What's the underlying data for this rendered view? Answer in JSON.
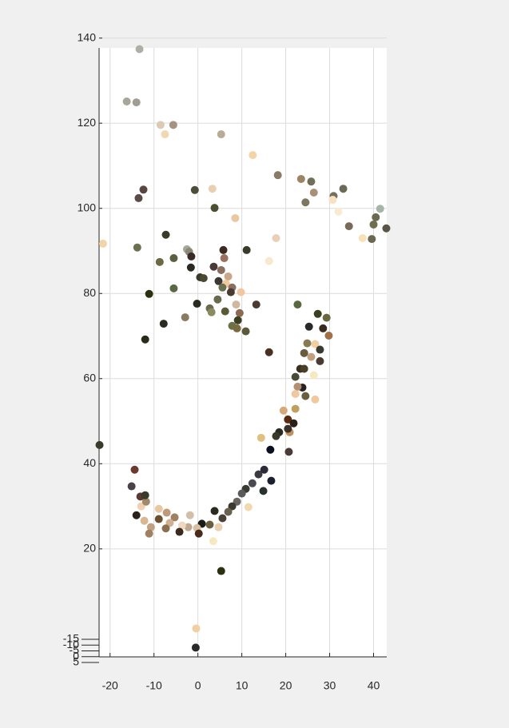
{
  "chart_data": {
    "type": "scatter",
    "x": [
      -13.3,
      -16.2,
      -14,
      -8.5,
      -5.6,
      -7.5,
      5.3,
      12.5,
      18.2,
      23.5,
      25.8,
      -12.4,
      -0.7,
      3.3,
      -13.5,
      33.1,
      26.4,
      30.9,
      24.5,
      3.8,
      41.5,
      30.7,
      32,
      8.5,
      40.5,
      40,
      34.4,
      42.9,
      39.6,
      37.5,
      17.8,
      -21.6,
      -7.3,
      -13.8,
      -2.5,
      -2,
      5.8,
      11.1,
      -5.5,
      -8.7,
      -1.5,
      6,
      16.2,
      -1.6,
      3.6,
      5.3,
      6.9,
      0.5,
      1.3,
      4.7,
      6.4,
      -5.5,
      5.6,
      7.8,
      9.8,
      -11.1,
      4.5,
      7.5,
      -0.2,
      8.7,
      13.3,
      22.7,
      9.5,
      2.7,
      3.1,
      6.2,
      -2.9,
      9.1,
      -7.8,
      27.3,
      29.3,
      7.8,
      8.9,
      10.9,
      25.3,
      28.5,
      -12,
      24.9,
      26.7,
      29.8,
      27.8,
      16.2,
      25.8,
      24.2,
      27.8,
      23.3,
      24.2,
      26.4,
      22.2,
      23.8,
      22.7,
      26.7,
      24.5,
      22.2,
      22.2,
      20.5,
      19.5,
      21.8,
      18.5,
      20.9,
      20.5,
      14.4,
      17.8,
      16.5,
      20.7,
      15.1,
      16.7,
      13.8,
      12.4,
      10.9,
      10,
      14.9,
      11.5,
      8.9,
      7.8,
      6.9,
      5.6,
      3.8,
      4.7,
      2.7,
      0.9,
      -0.2,
      -2.2,
      0.2,
      -3.6,
      -5.3,
      -6.4,
      -7.3,
      -8.9,
      -10.7,
      -11.1,
      -12.2,
      -12.9,
      -14,
      -11.8,
      -13.1,
      -12,
      -15.1,
      -14.4,
      -8.9,
      -7.1,
      -4.2,
      -1.8,
      3.5,
      5.3,
      -0.4,
      -0.5,
      -22.4
    ],
    "values": [
      137.4,
      125.1,
      124.9,
      119.6,
      119.6,
      117.4,
      117.4,
      112.5,
      107.8,
      106.9,
      106.3,
      104.4,
      104.3,
      104.6,
      102.4,
      104.6,
      103.7,
      102.9,
      101.4,
      100.1,
      99.9,
      102,
      99.2,
      97.7,
      97.9,
      96.2,
      95.8,
      95.3,
      92.8,
      93,
      93,
      91.7,
      93.8,
      90.8,
      90.4,
      89.8,
      90.2,
      90.2,
      88.3,
      87.4,
      88.7,
      88.3,
      87.6,
      86.1,
      86.3,
      85.5,
      84,
      83.8,
      83.6,
      82.9,
      82.3,
      81.2,
      81.4,
      81.4,
      80.3,
      79.9,
      78.6,
      80.3,
      77.6,
      77.4,
      77.4,
      77.4,
      75.4,
      76.5,
      75.6,
      75.8,
      74.4,
      73.7,
      72.9,
      75.2,
      74.3,
      72.4,
      71.8,
      71.1,
      72.2,
      71.8,
      69.2,
      68.3,
      68.1,
      70.1,
      66.8,
      66.2,
      65.1,
      66,
      64.1,
      62.3,
      62.3,
      60.8,
      60.4,
      57.9,
      58.1,
      55.1,
      55.9,
      56.4,
      52.9,
      50.4,
      52.5,
      49.5,
      47.4,
      47.4,
      48.2,
      46.1,
      46.5,
      43.3,
      42.8,
      38.6,
      36,
      37.5,
      35.4,
      34.1,
      33,
      33.6,
      29.8,
      31.1,
      30,
      28.7,
      27.2,
      28.9,
      25.1,
      25.7,
      25.9,
      24.9,
      25.1,
      23.6,
      25.5,
      27.4,
      26.1,
      24.8,
      27,
      25.1,
      23.6,
      26.6,
      30,
      27.9,
      31.1,
      32.3,
      32.6,
      34.7,
      38.6,
      29.4,
      28.5,
      24,
      27.9,
      21.8,
      14.8,
      1.3,
      -3.2,
      44.4
    ],
    "colors": [
      "#b0ada4",
      "#a8a69c",
      "#a09e93",
      "#dcc9b6",
      "#a49282",
      "#f0d8b0",
      "#b8ab98",
      "#f3d3a8",
      "#8a7a68",
      "#9b8468",
      "#707058",
      "#5a4640",
      "#4e4e38",
      "#e8d0b0",
      "#5a4a48",
      "#6a6a55",
      "#a89078",
      "#707060",
      "#7a7860",
      "#4a5030",
      "#a8b4a8",
      "#f8e0c0",
      "#f8ecd0",
      "#e8c8a0",
      "#6a6a50",
      "#707050",
      "#7a6a5a",
      "#5a5448",
      "#6a6850",
      "#f8e0b8",
      "#e8d0b8",
      "#f3d3a8",
      "#3a3a28",
      "#6a7050",
      "#a8a898",
      "#8a8878",
      "#3a2a20",
      "#3a3a2a",
      "#5a6040",
      "#6a6a45",
      "#3a2a28",
      "#9a7060",
      "#f8e8d0",
      "#2a2a20",
      "#4a3a38",
      "#8a7060",
      "#c8a888",
      "#3a3a28",
      "#4a4a30",
      "#3a3830",
      "#f0c8a0",
      "#5a6848",
      "#6a7050",
      "#8a7060",
      "#f0c8a0",
      "#2a3010",
      "#6a6a50",
      "#4a3a30",
      "#2a2a20",
      "#d0b8a0",
      "#4a3a30",
      "#5a6840",
      "#8a6a50",
      "#6a6a50",
      "#8a8a60",
      "#5a5a38",
      "#8a7a60",
      "#3a4020",
      "#2a2a20",
      "#3a4020",
      "#6a6840",
      "#6a7048",
      "#7a6a40",
      "#5a5a38",
      "#2a2a28",
      "#3a2a20",
      "#2a2a18",
      "#8a7a50",
      "#f0d0a0",
      "#a07048",
      "#3a3a30",
      "#4a3020",
      "#c0a080",
      "#6a5a40",
      "#4a3a30",
      "#3a3020",
      "#4a4028",
      "#f8e8c0",
      "#4a4a38",
      "#2a2020",
      "#b09070",
      "#f0c8a0",
      "#6a6040",
      "#f0c8a0",
      "#c0a060",
      "#5a2a10",
      "#d8a878",
      "#2a2018",
      "#2a2a20",
      "#c09060",
      "#3a3028",
      "#e0c080",
      "#3a3a28",
      "#0a1020",
      "#4a3a38",
      "#2a2a38",
      "#1a2030",
      "#3a3a40",
      "#4a4850",
      "#3a3a30",
      "#5a5a58",
      "#2a3030",
      "#f0d8b0",
      "#6a6460",
      "#3a3a30",
      "#6a6050",
      "#4a4038",
      "#2a2a20",
      "#e8d0b0",
      "#6a6040",
      "#1a1a18",
      "#d8c0a0",
      "#c0a890",
      "#4a2a18",
      "#f0d8c0",
      "#a08060",
      "#d0b090",
      "#8a7050",
      "#6a5030",
      "#c0a080",
      "#a08060",
      "#d8b890",
      "#f0d0b0",
      "#2a2018",
      "#a08868",
      "#5a3a30",
      "#3a3a28",
      "#4a4048",
      "#6a3a30",
      "#e8c8a0",
      "#c09a78",
      "#3a2a20",
      "#d0c0a8",
      "#f8e8c0",
      "#2a3010",
      "#f0d0a0",
      "#2a2a28",
      "#3a3a28"
    ],
    "xlim": [
      -22.5,
      43
    ],
    "xticks": [
      -20,
      -10,
      0,
      10,
      20,
      30,
      40
    ],
    "ylim": [
      -5,
      142
    ],
    "yticks": [
      20,
      40,
      60,
      80,
      100,
      120,
      140
    ],
    "zlim": [
      -15,
      5
    ],
    "zticks": [
      -15,
      -10,
      -5,
      0,
      5
    ],
    "grid": true
  }
}
